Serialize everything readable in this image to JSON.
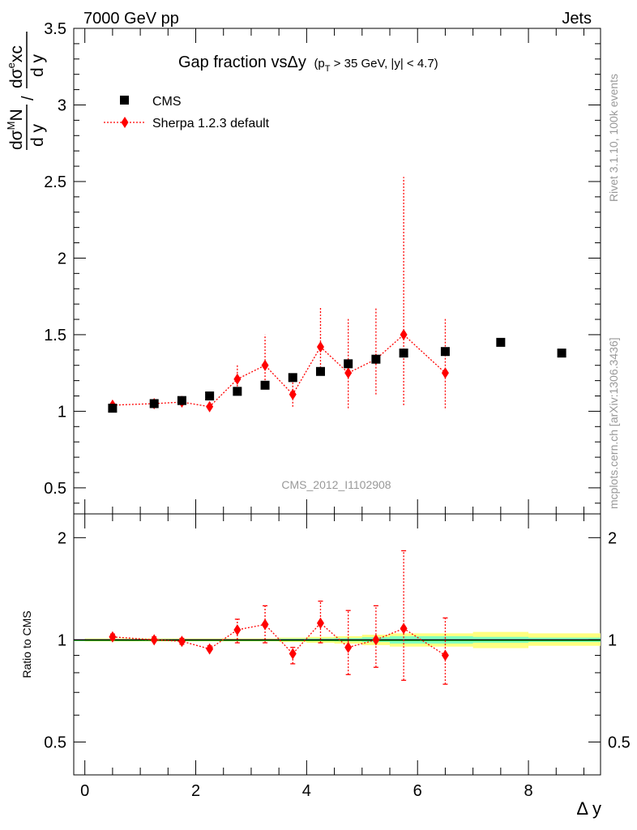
{
  "header": {
    "left": "7000 GeV pp",
    "right": "Jets"
  },
  "side_labels": {
    "rivet": "Rivet 3.1.10,  100k events",
    "mcplots": "mcplots.cern.ch [arXiv:1306.3436]"
  },
  "colors": {
    "data": "#000000",
    "mc": "#ff0000",
    "band_inner": "#80ffc0",
    "band_outer": "#ffff80",
    "ratio_line": "#00aa00"
  },
  "chart_data": [
    {
      "type": "scatter",
      "title": {
        "main": "Gap fraction vsΔy",
        "sub_open": "(p",
        "sub_T": "T",
        "sub_rest": " > 35 GeV, |y| < 4.7)"
      },
      "ylabel": {
        "num_pre": "dσ",
        "num_sup": "M",
        "num_post": "N",
        "den": "d y",
        "slash": "/",
        "num2_pre": "dσ",
        "num2_sup": "e",
        "num2_post": "xc",
        "den2": "d y"
      },
      "analysis_label": "CMS_2012_I1102908",
      "xlim": [
        -0.2,
        9.3
      ],
      "ylim": [
        0.33,
        3.5
      ],
      "yticks": [
        0.5,
        1,
        1.5,
        2,
        2.5,
        3,
        3.5
      ],
      "ytick_labels": [
        "0.5",
        "1",
        "1.5",
        "2",
        "2.5",
        "3",
        "3.5"
      ],
      "legend": {
        "position": "top-left",
        "entries": [
          "CMS",
          "Sherpa 1.2.3 default"
        ]
      },
      "series": [
        {
          "name": "CMS",
          "x": [
            0.5,
            1.25,
            1.75,
            2.25,
            2.75,
            3.25,
            3.75,
            4.25,
            4.75,
            5.25,
            5.75,
            6.5,
            7.5,
            8.6
          ],
          "y": [
            1.02,
            1.05,
            1.07,
            1.1,
            1.13,
            1.17,
            1.22,
            1.26,
            1.31,
            1.34,
            1.38,
            1.39,
            1.45,
            1.38
          ]
        },
        {
          "name": "Sherpa 1.2.3 default",
          "x": [
            0.5,
            1.25,
            1.75,
            2.25,
            2.75,
            3.25,
            3.75,
            4.25,
            4.75,
            5.25,
            5.75,
            6.5
          ],
          "y": [
            1.04,
            1.05,
            1.06,
            1.03,
            1.21,
            1.3,
            1.11,
            1.42,
            1.25,
            1.34,
            1.5,
            1.25
          ],
          "err_lo": [
            1.02,
            1.04,
            1.03,
            1.01,
            1.12,
            1.16,
            1.03,
            1.24,
            1.02,
            1.11,
            1.04,
            1.02
          ],
          "err_hi": [
            1.06,
            1.07,
            1.1,
            1.06,
            1.31,
            1.5,
            1.2,
            1.68,
            1.61,
            1.68,
            2.53,
            1.61
          ]
        }
      ]
    },
    {
      "type": "scatter",
      "ylabel": "Ratio to CMS",
      "xlabel": "Δ y",
      "xlim": [
        -0.2,
        9.3
      ],
      "ylim": [
        0.4,
        2.35
      ],
      "log_y": true,
      "yticks": [
        0.5,
        1,
        2
      ],
      "ytick_labels": [
        "0.5",
        "1",
        "2"
      ],
      "xticks": [
        0,
        2,
        4,
        6,
        8
      ],
      "xtick_labels": [
        "0",
        "2",
        "4",
        "6",
        "8"
      ],
      "band": {
        "x": [
          0,
          0.5,
          1.0,
          1.5,
          2.0,
          2.5,
          3.0,
          3.5,
          4.0,
          4.5,
          5.0,
          5.5,
          6.0,
          7.0,
          8.0,
          9.3
        ],
        "inner_lo": [
          0.995,
          0.995,
          0.995,
          0.995,
          0.995,
          0.995,
          0.995,
          0.993,
          0.992,
          0.99,
          0.985,
          0.975,
          0.975,
          0.98,
          0.985
        ],
        "inner_hi": [
          1.005,
          1.005,
          1.005,
          1.005,
          1.005,
          1.005,
          1.005,
          1.008,
          1.01,
          1.012,
          1.018,
          1.025,
          1.025,
          1.02,
          1.015
        ],
        "outer_lo": [
          0.99,
          0.99,
          0.99,
          0.99,
          0.99,
          0.99,
          0.99,
          0.985,
          0.98,
          0.975,
          0.965,
          0.955,
          0.955,
          0.945,
          0.96
        ],
        "outer_hi": [
          1.01,
          1.01,
          1.01,
          1.01,
          1.01,
          1.01,
          1.01,
          1.015,
          1.02,
          1.025,
          1.035,
          1.045,
          1.045,
          1.055,
          1.045
        ]
      },
      "series": [
        {
          "name": "Sherpa 1.2.3 default",
          "x": [
            0.5,
            1.25,
            1.75,
            2.25,
            2.75,
            3.25,
            3.75,
            4.25,
            4.75,
            5.25,
            5.75,
            6.5
          ],
          "y": [
            1.02,
            1.0,
            0.99,
            0.94,
            1.07,
            1.11,
            0.91,
            1.12,
            0.95,
            1.0,
            1.08,
            0.9
          ],
          "err_lo": [
            1.0,
            0.99,
            0.97,
            0.93,
            0.98,
            0.98,
            0.85,
            0.98,
            0.79,
            0.83,
            0.76,
            0.74
          ],
          "err_hi": [
            1.04,
            1.02,
            1.01,
            0.96,
            1.15,
            1.26,
            0.95,
            1.3,
            1.22,
            1.26,
            1.83,
            1.16
          ]
        }
      ]
    }
  ]
}
